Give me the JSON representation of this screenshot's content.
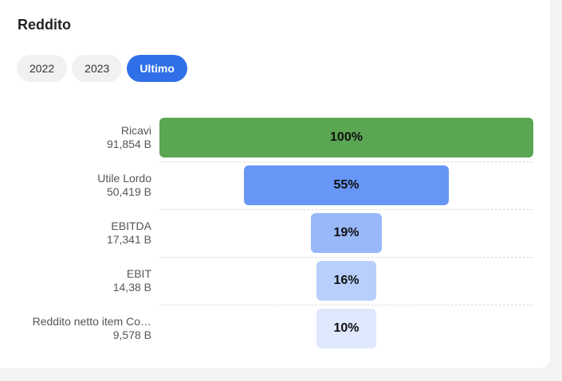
{
  "title": "Reddito",
  "tabs": [
    {
      "label": "2022",
      "active": false
    },
    {
      "label": "2023",
      "active": false
    },
    {
      "label": "Ultimo",
      "active": true
    }
  ],
  "chart_data": {
    "type": "funnel",
    "title": "",
    "categories": [
      "Ricavi",
      "Utile Lordo",
      "EBITDA",
      "EBIT",
      "Reddito netto item Co…"
    ],
    "values_text": [
      "91,854 B",
      "50,419 B",
      "17,341 B",
      "14,38 B",
      "9,578 B"
    ],
    "values": [
      91.854,
      50.419,
      17.341,
      14.38,
      9.578
    ],
    "percent_labels": [
      "100%",
      "55%",
      "19%",
      "16%",
      "10%"
    ],
    "percents": [
      100,
      55,
      19,
      16,
      10
    ],
    "colors": [
      "#5aa652",
      "#6796f6",
      "#98b8fa",
      "#b8cffc",
      "#dfe8fd"
    ]
  }
}
